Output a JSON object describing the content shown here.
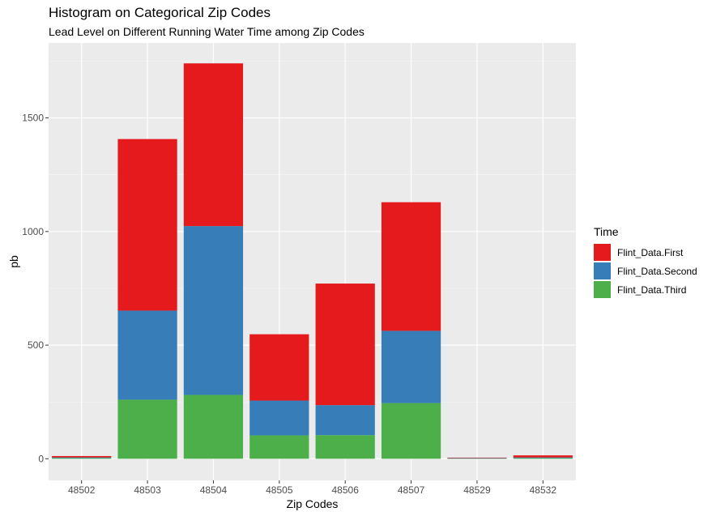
{
  "chart_data": {
    "type": "bar",
    "stacked": true,
    "title": "Histogram on Categorical Zip Codes",
    "subtitle": "Lead Level on Different Running Water Time among Zip Codes",
    "xlabel": "Zip Codes",
    "ylabel": "pb",
    "ylim": [
      -95,
      1830
    ],
    "yticks": [
      0,
      500,
      1000,
      1500
    ],
    "grid": true,
    "legend_position": "right",
    "legend_title": "Time",
    "categories": [
      "48502",
      "48503",
      "48504",
      "48505",
      "48506",
      "48507",
      "48529",
      "48532"
    ],
    "series": [
      {
        "name": "Flint_Data.Third",
        "color": "#4DAF4A",
        "values": [
          3,
          260,
          281,
          103,
          104,
          245,
          2,
          3
        ]
      },
      {
        "name": "Flint_Data.Second",
        "color": "#377EB8",
        "values": [
          3,
          392,
          743,
          153,
          132,
          318,
          1,
          3
        ]
      },
      {
        "name": "Flint_Data.First",
        "color": "#E41A1C",
        "values": [
          6,
          755,
          716,
          292,
          535,
          566,
          2,
          9
        ]
      }
    ],
    "legend_order": [
      "Flint_Data.First",
      "Flint_Data.Second",
      "Flint_Data.Third"
    ]
  }
}
